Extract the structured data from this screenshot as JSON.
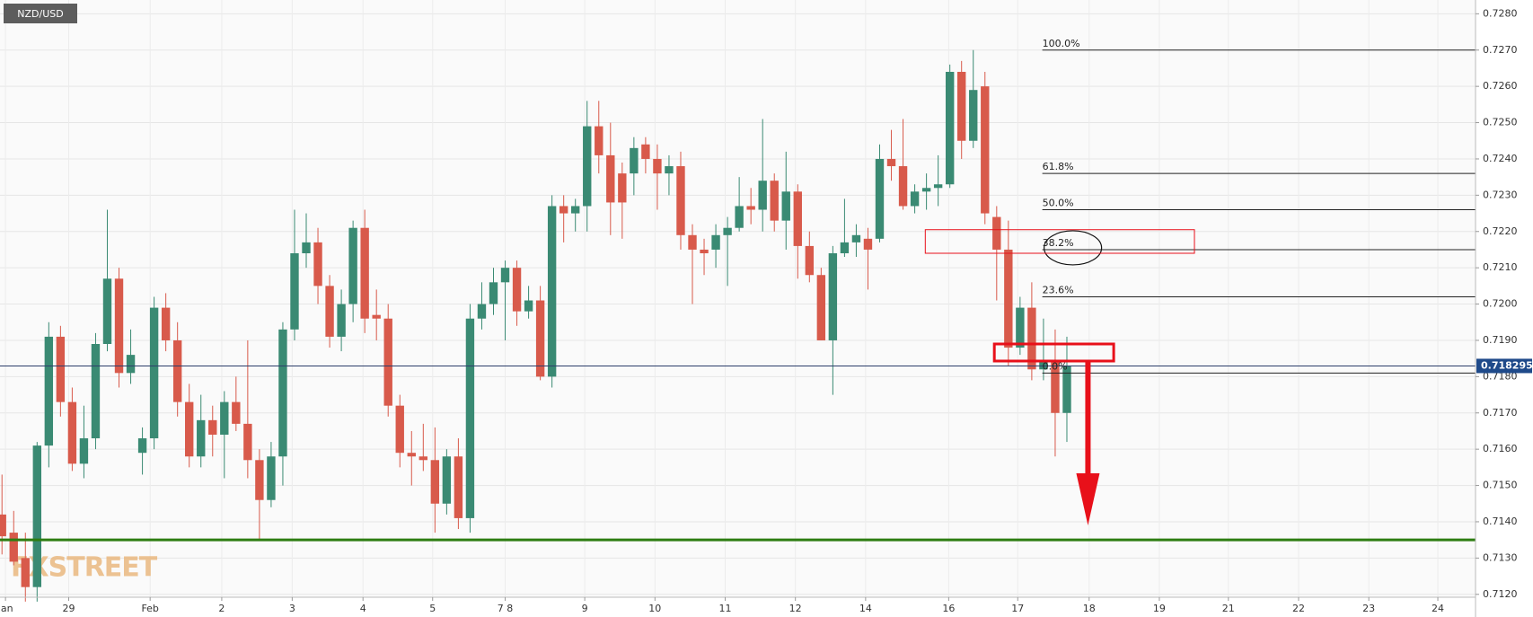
{
  "chart_data": {
    "type": "candlestick",
    "title": "NZD/USD",
    "watermark": "FXSTREET",
    "up_color": "#3a8a73",
    "down_color": "#d85a4b",
    "grid": true,
    "x": [
      0,
      1,
      2,
      3,
      4,
      5,
      6,
      7,
      8,
      9,
      10,
      11,
      12,
      13,
      14,
      15,
      16,
      17,
      18,
      19,
      20,
      21,
      22,
      23,
      24,
      25,
      26,
      27,
      28,
      29,
      30,
      31,
      32,
      33,
      34,
      35,
      36,
      37,
      38,
      39,
      40,
      41,
      42,
      43,
      44,
      45,
      46,
      47,
      48,
      49,
      50,
      51,
      52,
      53,
      54,
      55,
      56,
      57,
      58,
      59,
      60,
      61,
      62,
      63,
      64,
      65,
      66,
      67,
      68,
      69,
      70,
      71,
      72,
      73,
      74,
      75,
      76,
      77,
      78,
      79,
      80,
      81,
      82,
      83,
      84,
      85,
      86,
      87,
      88,
      89,
      90,
      91
    ],
    "open": [
      0.7142,
      0.7137,
      0.713,
      0.7122,
      0.7161,
      0.7191,
      0.7173,
      0.7156,
      0.7163,
      0.7189,
      0.7207,
      0.7181,
      0.7159,
      0.7163,
      0.7199,
      0.719,
      0.7173,
      0.7158,
      0.7168,
      0.7164,
      0.7173,
      0.7167,
      0.7157,
      0.7146,
      0.7158,
      0.7193,
      0.7214,
      0.7217,
      0.7205,
      0.7191,
      0.72,
      0.7221,
      0.7197,
      0.7196,
      0.7172,
      0.7159,
      0.7158,
      0.7157,
      0.7145,
      0.7158,
      0.7141,
      0.7196,
      0.72,
      0.7206,
      0.721,
      0.7198,
      0.7201,
      0.718,
      0.7227,
      0.7225,
      0.7227,
      0.7249,
      0.7241,
      0.7236,
      0.7236,
      0.7244,
      0.724,
      0.7236,
      0.7238,
      0.7219,
      0.7215,
      0.7215,
      0.7219,
      0.7221,
      0.7227,
      0.7226,
      0.7234,
      0.7223,
      0.7231,
      0.7216,
      0.7208,
      0.719,
      0.7214,
      0.7217,
      0.7218,
      0.7218,
      0.724,
      0.7238,
      0.7227,
      0.7231,
      0.7232,
      0.7233,
      0.7264,
      0.7245,
      0.726,
      0.7224,
      0.7215,
      0.7188,
      0.7199,
      0.7182,
      0.7184,
      0.717
    ],
    "high": [
      0.7153,
      0.7143,
      0.7137,
      0.7162,
      0.7195,
      0.7194,
      0.7177,
      0.7172,
      0.7192,
      0.7226,
      0.721,
      0.7193,
      0.7166,
      0.7202,
      0.7203,
      0.7195,
      0.7178,
      0.7175,
      0.7172,
      0.7176,
      0.718,
      0.719,
      0.716,
      0.7162,
      0.7195,
      0.7226,
      0.7225,
      0.7221,
      0.7208,
      0.7204,
      0.7223,
      0.7226,
      0.7204,
      0.72,
      0.7175,
      0.7165,
      0.7167,
      0.7166,
      0.716,
      0.7163,
      0.72,
      0.7206,
      0.721,
      0.7212,
      0.7212,
      0.7205,
      0.7205,
      0.723,
      0.723,
      0.7229,
      0.7256,
      0.7256,
      0.725,
      0.7239,
      0.7246,
      0.7246,
      0.7244,
      0.7241,
      0.7242,
      0.7222,
      0.7218,
      0.7222,
      0.7224,
      0.7235,
      0.7232,
      0.7251,
      0.7236,
      0.7242,
      0.7233,
      0.722,
      0.721,
      0.7216,
      0.7229,
      0.7222,
      0.7221,
      0.7244,
      0.7248,
      0.7251,
      0.7233,
      0.7236,
      0.7241,
      0.7266,
      0.7267,
      0.727,
      0.7264,
      0.7227,
      0.7223,
      0.7202,
      0.7206,
      0.7196,
      0.7193,
      0.7191
    ],
    "low": [
      0.7131,
      0.7128,
      0.7118,
      0.7118,
      0.7155,
      0.7169,
      0.7154,
      0.7152,
      0.716,
      0.7187,
      0.7177,
      0.7178,
      0.7153,
      0.716,
      0.7187,
      0.7169,
      0.7155,
      0.7155,
      0.7158,
      0.7152,
      0.7165,
      0.7152,
      0.7135,
      0.7144,
      0.715,
      0.719,
      0.721,
      0.72,
      0.7188,
      0.7187,
      0.7195,
      0.7192,
      0.719,
      0.7169,
      0.7155,
      0.715,
      0.7154,
      0.7137,
      0.7142,
      0.7138,
      0.7137,
      0.7193,
      0.7197,
      0.719,
      0.7194,
      0.7196,
      0.7179,
      0.7177,
      0.7217,
      0.722,
      0.722,
      0.7236,
      0.7219,
      0.7218,
      0.723,
      0.7236,
      0.7226,
      0.723,
      0.7215,
      0.72,
      0.7208,
      0.721,
      0.7205,
      0.722,
      0.7222,
      0.722,
      0.722,
      0.7215,
      0.7207,
      0.7206,
      0.719,
      0.7175,
      0.7213,
      0.7213,
      0.7204,
      0.7217,
      0.7234,
      0.7226,
      0.7225,
      0.7226,
      0.7227,
      0.7232,
      0.724,
      0.7243,
      0.7222,
      0.7201,
      0.7183,
      0.7186,
      0.7179,
      0.7179,
      0.7158,
      0.7162
    ],
    "close": [
      0.7136,
      0.7129,
      0.7122,
      0.7161,
      0.7191,
      0.7173,
      0.7156,
      0.7163,
      0.7189,
      0.7207,
      0.7181,
      0.7186,
      0.7163,
      0.7199,
      0.719,
      0.7173,
      0.7158,
      0.7168,
      0.7164,
      0.7173,
      0.7167,
      0.7157,
      0.7146,
      0.7158,
      0.7193,
      0.7214,
      0.7217,
      0.7205,
      0.7191,
      0.72,
      0.7221,
      0.7196,
      0.7196,
      0.7172,
      0.7159,
      0.7158,
      0.7157,
      0.7145,
      0.7158,
      0.7141,
      0.7196,
      0.72,
      0.7206,
      0.721,
      0.7198,
      0.7201,
      0.718,
      0.7227,
      0.7225,
      0.7227,
      0.7249,
      0.7241,
      0.7228,
      0.7228,
      0.7243,
      0.724,
      0.7236,
      0.7238,
      0.7219,
      0.7215,
      0.7214,
      0.7219,
      0.7221,
      0.7227,
      0.7226,
      0.7234,
      0.7223,
      0.7231,
      0.7216,
      0.7208,
      0.719,
      0.7214,
      0.7217,
      0.7219,
      0.7215,
      0.724,
      0.7238,
      0.7227,
      0.7231,
      0.7232,
      0.7233,
      0.7264,
      0.7245,
      0.7259,
      0.7225,
      0.7215,
      0.7188,
      0.7199,
      0.7182,
      0.7184,
      0.717,
      0.7183
    ],
    "xlim": [
      -0.17,
      125.92
    ],
    "xticks": [
      {
        "value": 0.3,
        "label": "Jan"
      },
      {
        "value": 5.7,
        "label": "29"
      },
      {
        "value": 12.66,
        "label": "Feb"
      },
      {
        "value": 18.78,
        "label": "2"
      },
      {
        "value": 24.8,
        "label": "3"
      },
      {
        "value": 30.85,
        "label": "4"
      },
      {
        "value": 36.8,
        "label": "5"
      },
      {
        "value": 43,
        "label": "7 8"
      },
      {
        "value": 49.8,
        "label": "9"
      },
      {
        "value": 55.8,
        "label": "10"
      },
      {
        "value": 61.8,
        "label": "11"
      },
      {
        "value": 67.8,
        "label": "12"
      },
      {
        "value": 73.8,
        "label": "14"
      },
      {
        "value": 80.9,
        "label": "16"
      },
      {
        "value": 86.8,
        "label": "17"
      },
      {
        "value": 92.9,
        "label": "18"
      },
      {
        "value": 98.9,
        "label": "19"
      },
      {
        "value": 104.8,
        "label": "21"
      },
      {
        "value": 110.8,
        "label": "22"
      },
      {
        "value": 116.8,
        "label": "23"
      },
      {
        "value": 122.7,
        "label": "24"
      }
    ],
    "ylim": [
      0.71192,
      0.72838
    ],
    "yticks": [
      {
        "value": 0.728,
        "label": "0.7280"
      },
      {
        "value": 0.727,
        "label": "0.7270"
      },
      {
        "value": 0.726,
        "label": "0.7260"
      },
      {
        "value": 0.725,
        "label": "0.7250"
      },
      {
        "value": 0.724,
        "label": "0.7240"
      },
      {
        "value": 0.723,
        "label": "0.7230"
      },
      {
        "value": 0.722,
        "label": "0.7220"
      },
      {
        "value": 0.721,
        "label": "0.7210"
      },
      {
        "value": 0.72,
        "label": "0.7200"
      },
      {
        "value": 0.719,
        "label": "0.7190"
      },
      {
        "value": 0.718,
        "label": "0.7180"
      },
      {
        "value": 0.717,
        "label": "0.7170"
      },
      {
        "value": 0.716,
        "label": "0.7160"
      },
      {
        "value": 0.715,
        "label": "0.7150"
      },
      {
        "value": 0.714,
        "label": "0.7140"
      },
      {
        "value": 0.713,
        "label": "0.7130"
      },
      {
        "value": 0.712,
        "label": "0.7120"
      }
    ],
    "current_price": 0.718295,
    "support": {
      "value": 0.7135,
      "color": "#2e7d12"
    },
    "fib_start": 88.9,
    "fib_levels": [
      {
        "label": "100.0%",
        "value": 0.727
      },
      {
        "label": "61.8%",
        "value": 0.7236
      },
      {
        "label": "50.0%",
        "value": 0.7226
      },
      {
        "label": "38.2%",
        "value": 0.7215
      },
      {
        "label": "23.6%",
        "value": 0.7202
      },
      {
        "label": "0.0%",
        "value": 0.7181
      }
    ],
    "zones": [
      {
        "x0": 78.9,
        "x1": 101.9,
        "top": 0.72205,
        "bottom": 0.7214,
        "width": 1
      },
      {
        "x0": 84.8,
        "x1": 95.0,
        "top": 0.7189,
        "bottom": 0.71843,
        "width": 3
      }
    ],
    "arrow": {
      "x": 92.8,
      "from": 0.7184,
      "to": 0.7139
    }
  }
}
